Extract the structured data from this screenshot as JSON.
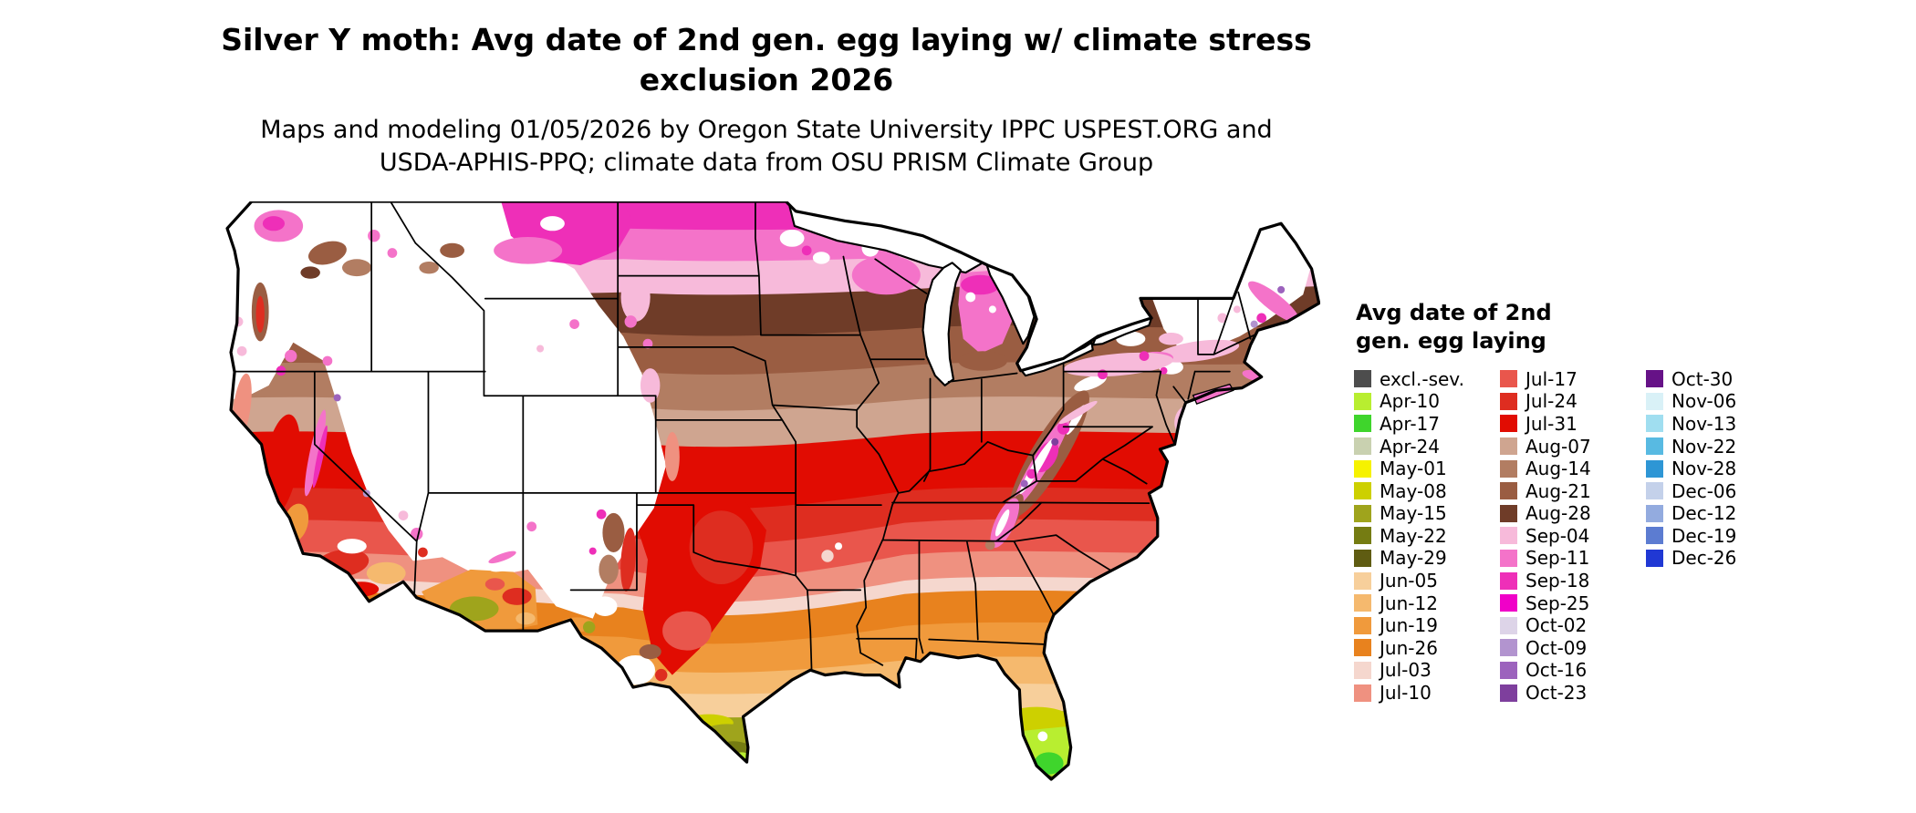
{
  "header": {
    "title_line1": "Silver Y moth: Avg date of 2nd gen. egg laying w/ climate stress",
    "title_line2": "exclusion 2026",
    "subtitle_line1": "Maps and modeling 01/05/2026 by Oregon State University IPPC USPEST.ORG and",
    "subtitle_line2": "USDA-APHIS-PPQ; climate data from OSU PRISM Climate Group"
  },
  "legend": {
    "title_line1": "Avg date of 2nd",
    "title_line2": "gen. egg laying",
    "columns": [
      [
        {
          "label": "excl.-sev.",
          "color": "#4d4d4d"
        },
        {
          "label": "Apr-10",
          "color": "#b8ee30"
        },
        {
          "label": "Apr-17",
          "color": "#3fd52c"
        },
        {
          "label": "Apr-24",
          "color": "#c9d1b0"
        },
        {
          "label": "May-01",
          "color": "#f6f200"
        },
        {
          "label": "May-08",
          "color": "#cdd000"
        },
        {
          "label": "May-15",
          "color": "#9fa41c"
        },
        {
          "label": "May-22",
          "color": "#757c12"
        },
        {
          "label": "May-29",
          "color": "#5f5c12"
        },
        {
          "label": "Jun-05",
          "color": "#f7cf9b"
        },
        {
          "label": "Jun-12",
          "color": "#f5b96e"
        },
        {
          "label": "Jun-19",
          "color": "#f09a3c"
        },
        {
          "label": "Jun-26",
          "color": "#e8821e"
        },
        {
          "label": "Jul-03",
          "color": "#f5d7ce"
        },
        {
          "label": "Jul-10",
          "color": "#ef9180"
        }
      ],
      [
        {
          "label": "Jul-17",
          "color": "#e9564c"
        },
        {
          "label": "Jul-24",
          "color": "#de2d20"
        },
        {
          "label": "Jul-31",
          "color": "#e10c02"
        },
        {
          "label": "Aug-07",
          "color": "#cfa590"
        },
        {
          "label": "Aug-14",
          "color": "#b27d62"
        },
        {
          "label": "Aug-21",
          "color": "#9a5d42"
        },
        {
          "label": "Aug-28",
          "color": "#6f3c28"
        },
        {
          "label": "Sep-04",
          "color": "#f7bada"
        },
        {
          "label": "Sep-11",
          "color": "#f473c9"
        },
        {
          "label": "Sep-18",
          "color": "#ee2fb8"
        },
        {
          "label": "Sep-25",
          "color": "#f001c8"
        },
        {
          "label": "Oct-02",
          "color": "#ddd4e8"
        },
        {
          "label": "Oct-09",
          "color": "#b294cf"
        },
        {
          "label": "Oct-16",
          "color": "#9c63bd"
        },
        {
          "label": "Oct-23",
          "color": "#7e3f9d"
        }
      ],
      [
        {
          "label": "Oct-30",
          "color": "#661287"
        },
        {
          "label": "Nov-06",
          "color": "#d9f1f7"
        },
        {
          "label": "Nov-13",
          "color": "#a0def0"
        },
        {
          "label": "Nov-22",
          "color": "#58bae2"
        },
        {
          "label": "Nov-28",
          "color": "#2e96d5"
        },
        {
          "label": "Dec-06",
          "color": "#c4d1ea"
        },
        {
          "label": "Dec-12",
          "color": "#93abdf"
        },
        {
          "label": "Dec-19",
          "color": "#5c7cd1"
        },
        {
          "label": "Dec-26",
          "color": "#2038d4"
        }
      ]
    ]
  }
}
